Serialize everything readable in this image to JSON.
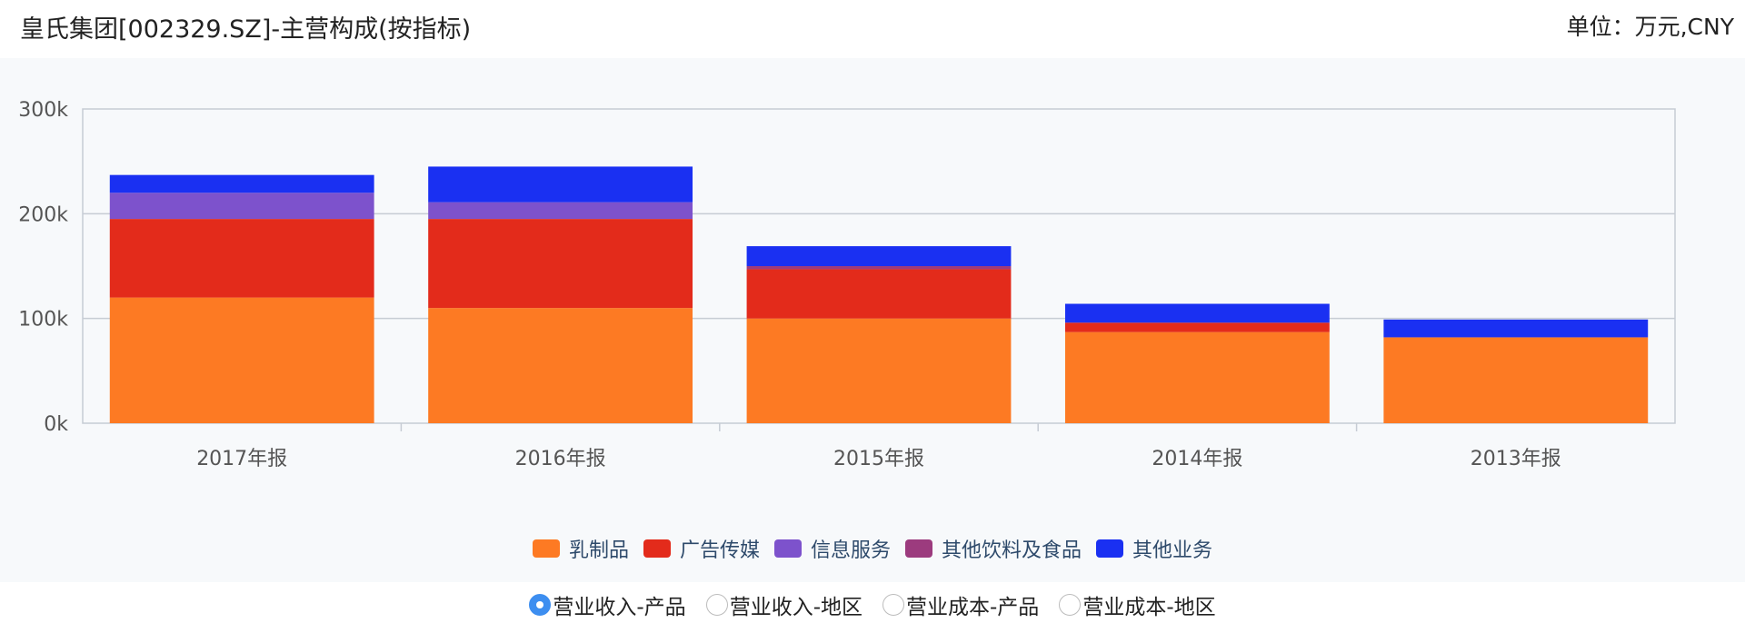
{
  "header": {
    "title": "皇氏集团[002329.SZ]-主营构成(按指标)",
    "unit": "单位：万元,CNY"
  },
  "chart_data": {
    "type": "bar",
    "stacked": true,
    "categories": [
      "2017年报",
      "2016年报",
      "2015年报",
      "2014年报",
      "2013年报"
    ],
    "series": [
      {
        "name": "乳制品",
        "color": "#fd7a23",
        "values": [
          120000,
          110000,
          100000,
          87000,
          82000
        ]
      },
      {
        "name": "广告传媒",
        "color": "#e32b1b",
        "values": [
          75000,
          85000,
          47000,
          9000,
          0
        ]
      },
      {
        "name": "信息服务",
        "color": "#7d52cc",
        "values": [
          25000,
          16000,
          0,
          0,
          0
        ]
      },
      {
        "name": "其他饮料及食品",
        "color": "#9c3b7e",
        "values": [
          0,
          0,
          3000,
          0,
          0
        ]
      },
      {
        "name": "其他业务",
        "color": "#1a30f2",
        "values": [
          17000,
          34000,
          19000,
          18000,
          17000
        ]
      }
    ],
    "yticks": [
      "0k",
      "100k",
      "200k",
      "300k"
    ],
    "ylim": [
      0,
      300000
    ],
    "grid": true,
    "legend": "bottom"
  },
  "options": [
    {
      "label": "营业收入-产品",
      "selected": true
    },
    {
      "label": "营业收入-地区",
      "selected": false
    },
    {
      "label": "营业成本-产品",
      "selected": false
    },
    {
      "label": "营业成本-地区",
      "selected": false
    }
  ]
}
